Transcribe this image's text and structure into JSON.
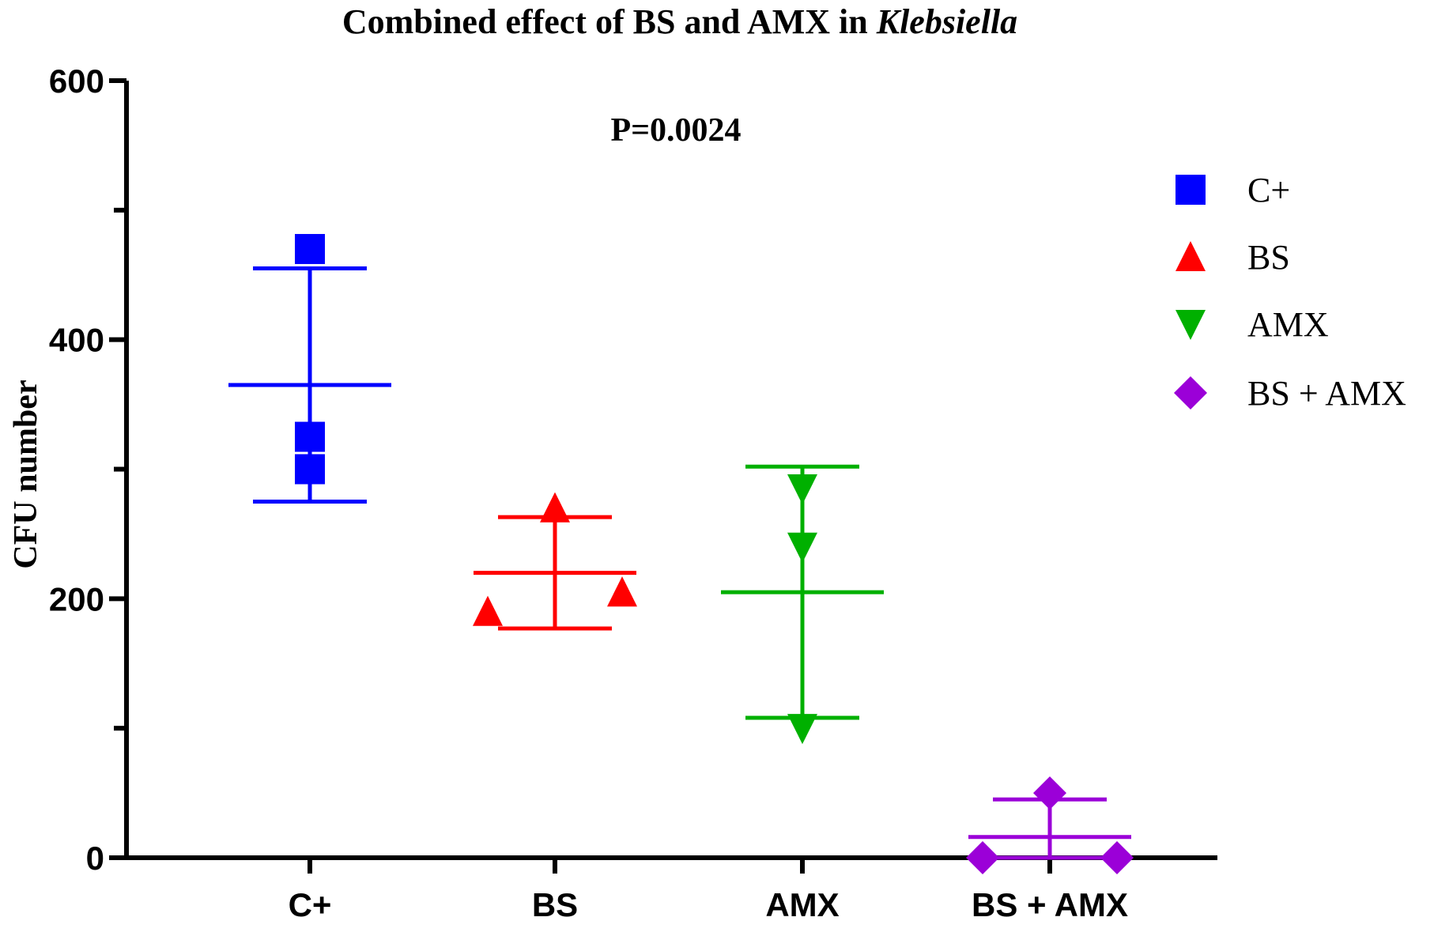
{
  "chart_data": {
    "type": "scatter",
    "title": "Combined effect of BS and AMX in ",
    "title_italic": "Klebsiella",
    "annotation": "P=0.0024",
    "xlabel": "",
    "ylabel": "CFU number",
    "ylim": [
      0,
      600
    ],
    "yticks": [
      "0",
      "200",
      "400",
      "600"
    ],
    "y_minor_ticks": [
      100,
      300,
      500
    ],
    "categories": [
      "C+",
      "BS",
      "AMX",
      "BS + AMX"
    ],
    "legend_position": "right",
    "series": [
      {
        "name": "C+",
        "color": "#0000ff",
        "marker": "square-icon",
        "points": [
          470,
          325,
          300
        ],
        "mean": 365,
        "sd_upper": 455,
        "sd_lower": 275
      },
      {
        "name": "BS",
        "color": "#ff0000",
        "marker": "triangle-up-icon",
        "points": [
          190,
          270,
          205
        ],
        "mean": 220,
        "sd_upper": 263,
        "sd_lower": 177
      },
      {
        "name": "AMX",
        "color": "#00b000",
        "marker": "triangle-down-icon",
        "points": [
          285,
          240,
          100
        ],
        "mean": 205,
        "sd_upper": 302,
        "sd_lower": 108
      },
      {
        "name": "BS + AMX",
        "color": "#9b00d8",
        "marker": "diamond-icon",
        "points": [
          0,
          50,
          0
        ],
        "mean": 16,
        "sd_upper": 45,
        "sd_lower": 0
      }
    ]
  }
}
